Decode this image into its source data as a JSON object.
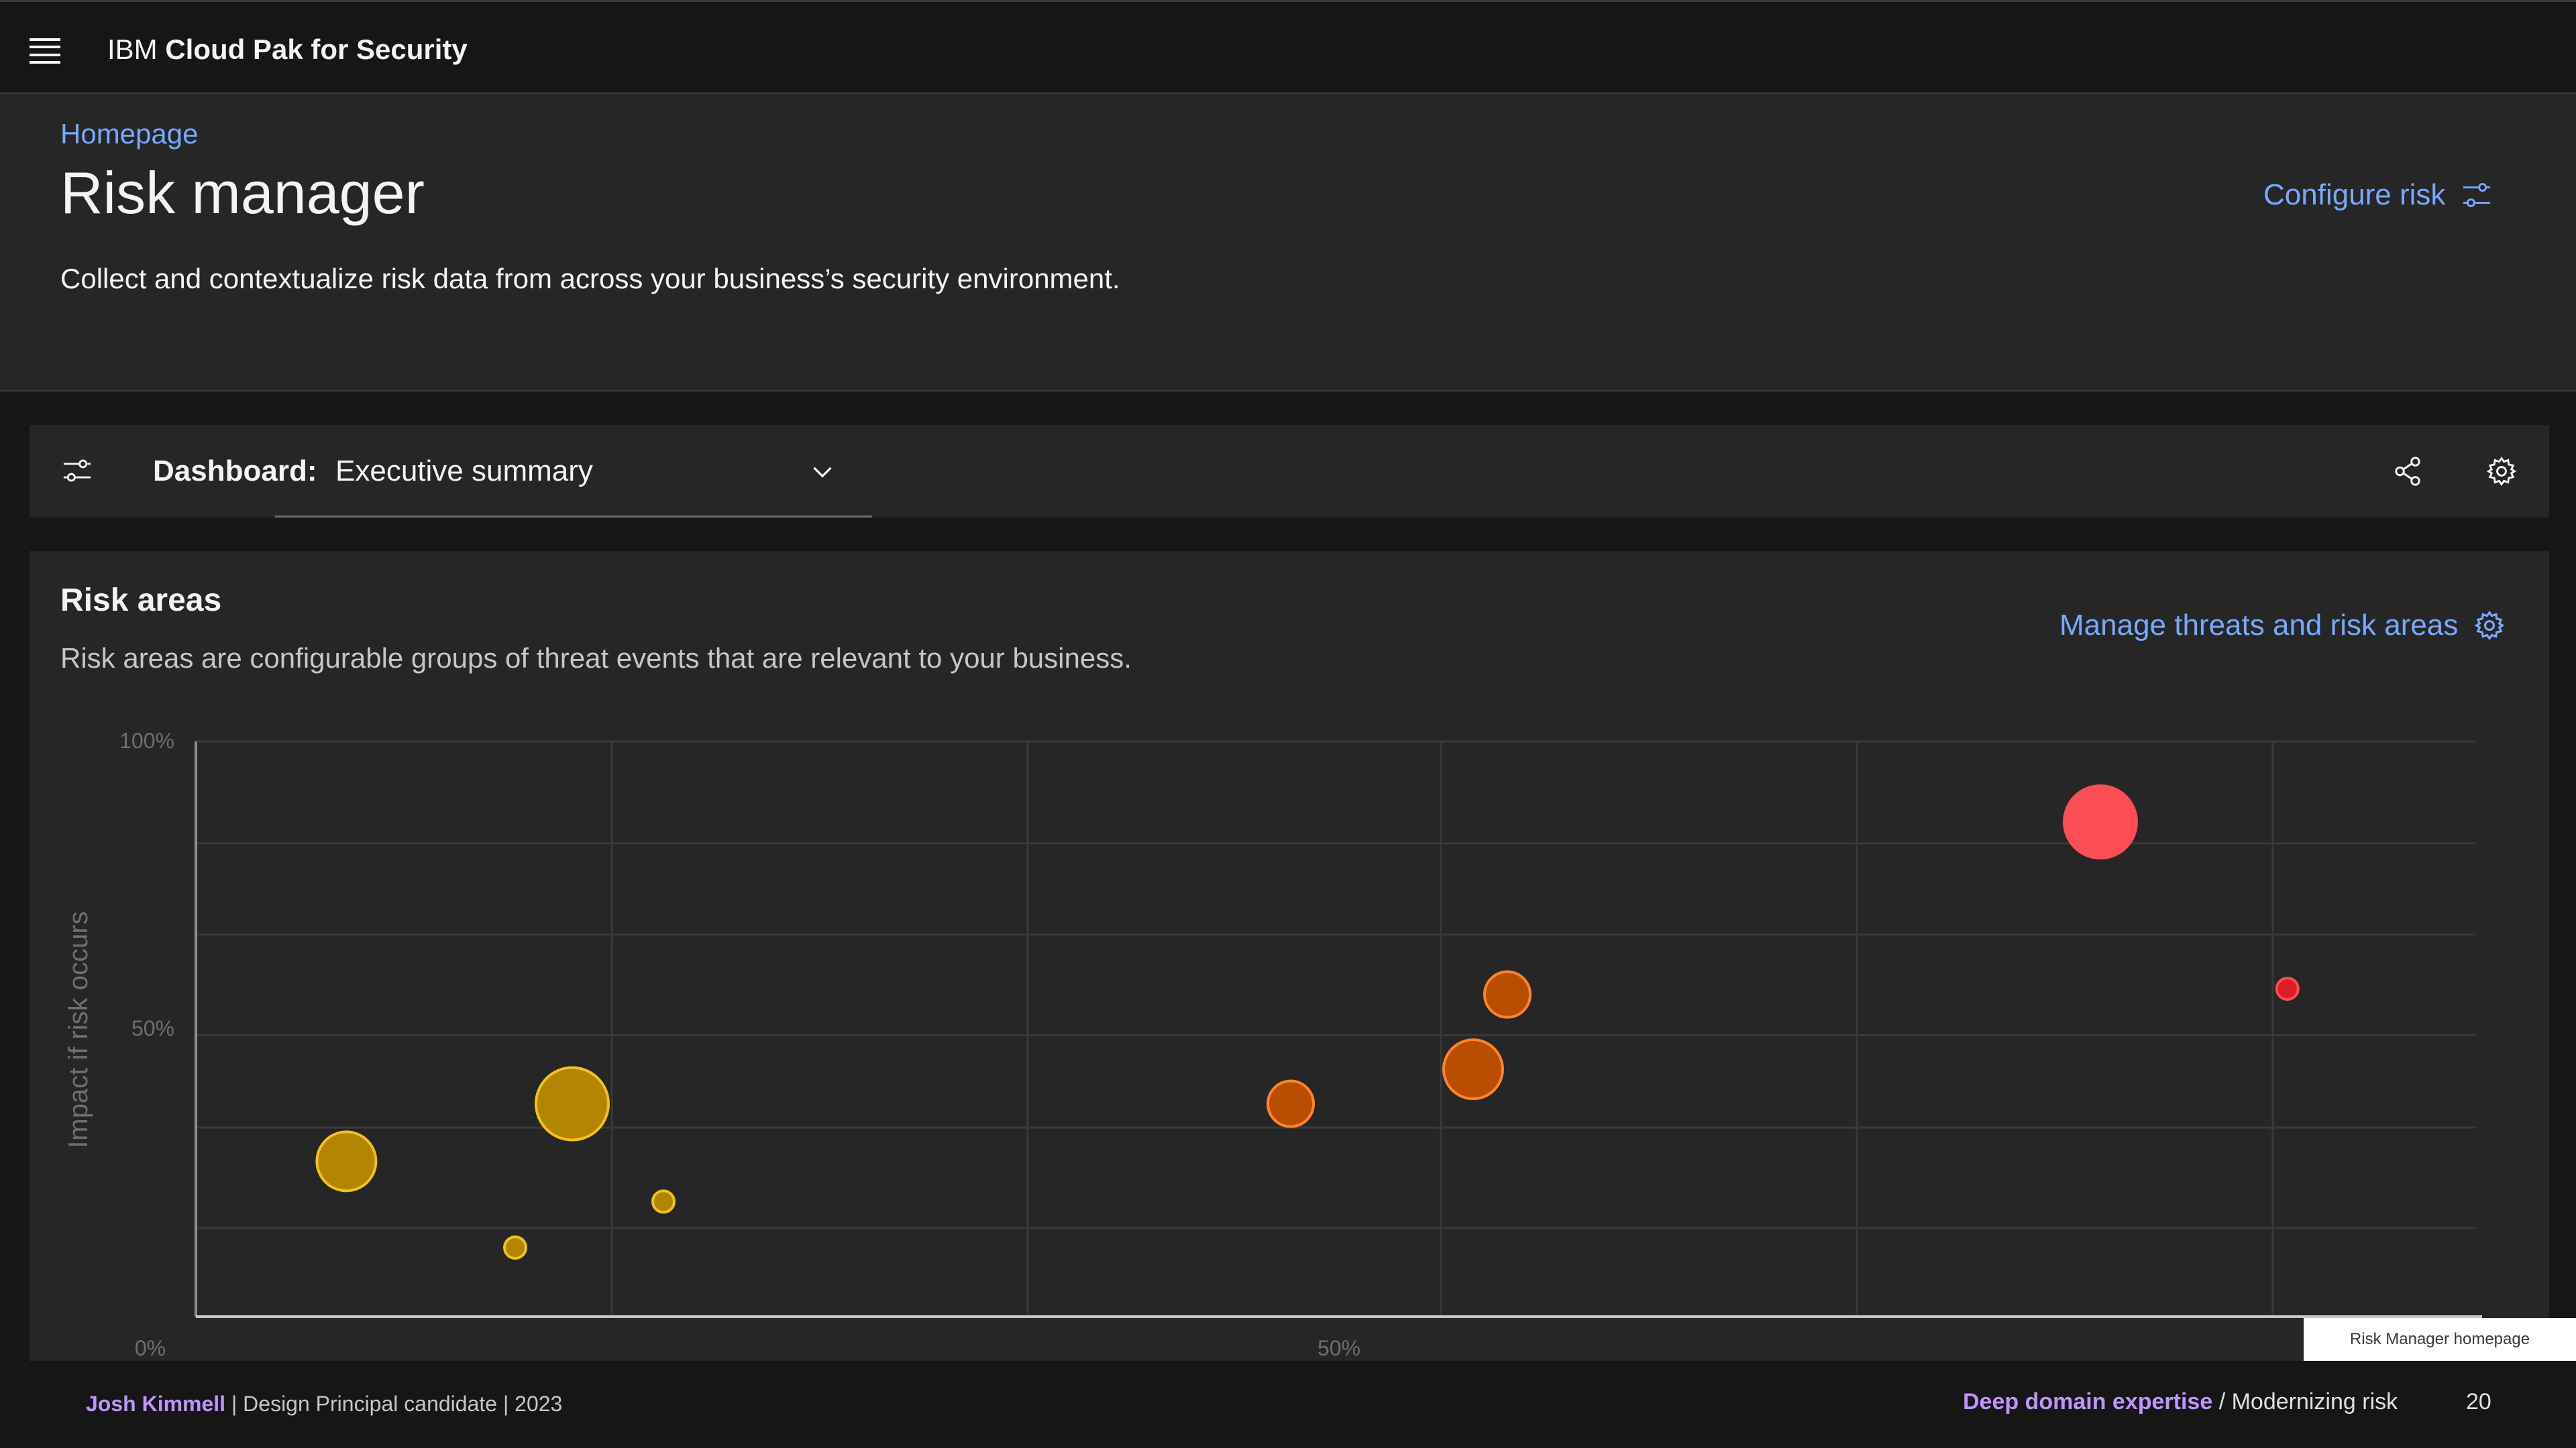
{
  "header": {
    "brand_prefix": "IBM",
    "brand_name": "Cloud Pak for Security"
  },
  "page": {
    "breadcrumb": "Homepage",
    "title": "Risk manager",
    "description": "Collect and contextualize risk data from across your business’s security environment.",
    "configure_label": "Configure risk"
  },
  "toolbar": {
    "label": "Dashboard:",
    "selected_dashboard": "Executive summary"
  },
  "risk_areas": {
    "title": "Risk areas",
    "description": "Risk areas are configurable groups of threat events that are relevant to your business.",
    "manage_label": "Manage threats and risk areas"
  },
  "chart_data": {
    "type": "scatter",
    "xlabel": "",
    "ylabel": "Impact if risk occurs",
    "x_tick_labels": [
      "0%",
      "50%"
    ],
    "y_tick_labels": [
      "0%",
      "50%",
      "100%"
    ],
    "xlim": [
      0,
      100
    ],
    "ylim": [
      0,
      100
    ],
    "grid": true,
    "points": [
      {
        "x": 6.6,
        "y": 27,
        "size": "large",
        "color": "#b28600"
      },
      {
        "x": 14,
        "y": 12,
        "size": "small",
        "color": "#b28600"
      },
      {
        "x": 16.5,
        "y": 37,
        "size": "xlarge",
        "color": "#b28600"
      },
      {
        "x": 20.5,
        "y": 20,
        "size": "small",
        "color": "#b28600"
      },
      {
        "x": 48,
        "y": 37,
        "size": "medium",
        "color": "#ba4e00"
      },
      {
        "x": 56,
        "y": 43,
        "size": "large",
        "color": "#ba4e00"
      },
      {
        "x": 57.5,
        "y": 56,
        "size": "medium",
        "color": "#ba4e00"
      },
      {
        "x": 83.5,
        "y": 86,
        "size": "xlarge",
        "color": "#fa4d56"
      },
      {
        "x": 91.7,
        "y": 57,
        "size": "small",
        "color": "#da1e28"
      }
    ]
  },
  "caption": "Risk Manager homepage",
  "footer": {
    "author": "Josh Kimmell",
    "author_meta": " | Design Principal candidate | 2023",
    "section": "Deep domain expertise",
    "topic": " / Modernizing risk",
    "page_number": "20"
  }
}
